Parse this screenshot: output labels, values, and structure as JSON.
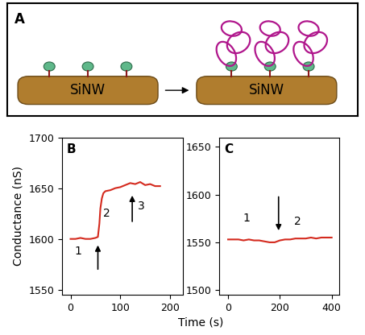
{
  "diagram": {
    "label": "A",
    "left_rod": "SiNW",
    "right_rod": "SiNW"
  },
  "x_label": "Time (s)",
  "y_label": "Conductance (nS)",
  "chart_data": [
    {
      "type": "line",
      "label": "B",
      "color": "#d42a1e",
      "x": [
        0,
        10,
        20,
        30,
        40,
        50,
        55,
        58,
        60,
        63,
        66,
        70,
        80,
        90,
        100,
        110,
        120,
        130,
        140,
        150,
        160,
        170,
        180
      ],
      "values": [
        1600,
        1600,
        1601,
        1600,
        1600,
        1601,
        1602,
        1615,
        1630,
        1640,
        1645,
        1647,
        1648,
        1650,
        1651,
        1653,
        1655,
        1654,
        1656,
        1653,
        1654,
        1652,
        1652
      ],
      "xlim": [
        -17,
        225
      ],
      "xticks": [
        0,
        100,
        200
      ],
      "ylim": [
        1545,
        1700
      ],
      "yticks": [
        1550,
        1600,
        1650,
        1700
      ],
      "annotations": [
        {
          "text": "1",
          "x": 15,
          "y": 1588
        },
        {
          "text": "2",
          "x": 72,
          "y": 1625
        },
        {
          "text": "3",
          "x": 142,
          "y": 1632
        }
      ],
      "arrows": [
        {
          "x": 55,
          "y_from": 1568,
          "y_to": 1596
        },
        {
          "x": 124,
          "y_from": 1615,
          "y_to": 1645
        }
      ]
    },
    {
      "type": "line",
      "label": "C",
      "color": "#d42a1e",
      "x": [
        0,
        20,
        40,
        60,
        80,
        100,
        120,
        140,
        160,
        180,
        200,
        220,
        240,
        260,
        280,
        300,
        320,
        340,
        360,
        380,
        400
      ],
      "values": [
        1553,
        1553,
        1553,
        1552,
        1553,
        1552,
        1552,
        1551,
        1550,
        1550,
        1552,
        1553,
        1553,
        1554,
        1554,
        1554,
        1555,
        1554,
        1555,
        1555,
        1555
      ],
      "xlim": [
        -35,
        430
      ],
      "xticks": [
        0,
        200,
        400
      ],
      "ylim": [
        1495,
        1660
      ],
      "yticks": [
        1500,
        1550,
        1600,
        1650
      ],
      "annotations": [
        {
          "text": "1",
          "x": 70,
          "y": 1575
        },
        {
          "text": "2",
          "x": 270,
          "y": 1572
        }
      ],
      "arrows": [
        {
          "x": 195,
          "y_from": 1600,
          "y_to": 1560
        }
      ]
    }
  ]
}
